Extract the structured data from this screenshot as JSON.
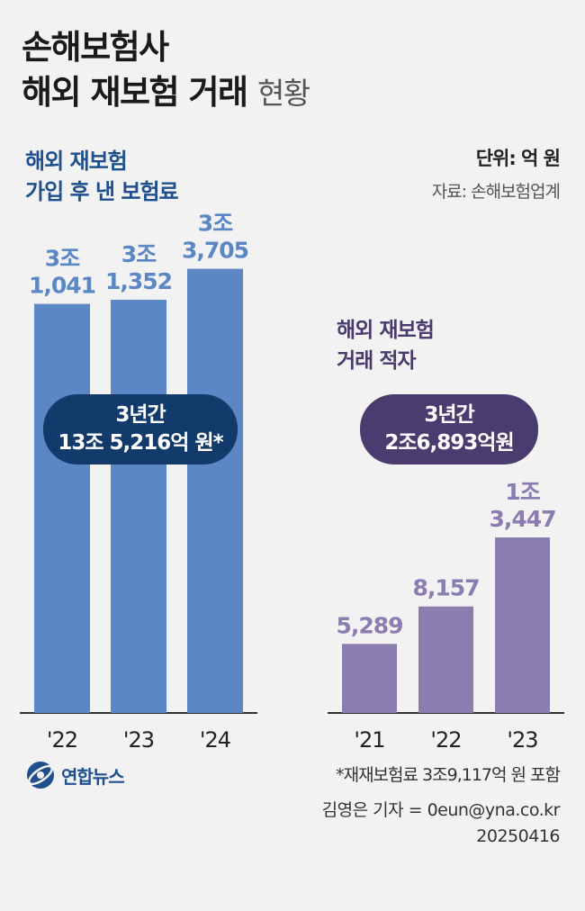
{
  "title": {
    "line1": "손해보험사",
    "line2_bold": "해외 재보험 거래",
    "line2_light": "현황"
  },
  "unit": "단위: 억 원",
  "source": "자료: 손해보험업계",
  "left_panel": {
    "subtitle_line1": "해외 재보험",
    "subtitle_line2": "가입 후 낸 보험료",
    "total_line1": "3년간",
    "total_line2": "13조 5,216억 원*"
  },
  "right_panel": {
    "subtitle_line1": "해외 재보험",
    "subtitle_line2": "거래 적자",
    "total_line1": "3년간",
    "total_line2": "2조6,893억원"
  },
  "footnote": "*재재보험료 3조9,117억 원 포함",
  "credit": {
    "author": "김영은 기자 = 0eun@yna.co.kr",
    "date": "20250416"
  },
  "logo": {
    "name": "연합뉴스"
  },
  "colors": {
    "left_bar": "#5b87c5",
    "left_label": "#5b87c5",
    "right_bar": "#8b7db0",
    "right_label": "#8b7db0",
    "axis": "#333333"
  },
  "chart_data": [
    {
      "type": "bar",
      "title": "해외 재보험 가입 후 낸 보험료",
      "categories": [
        "'22",
        "'23",
        "'24"
      ],
      "values": [
        31041,
        31352,
        33705
      ],
      "labels": [
        [
          "3조",
          "1,041"
        ],
        [
          "3조",
          "1,352"
        ],
        [
          "3조",
          "3,705"
        ]
      ],
      "ylabel": "억 원",
      "ylim": [
        0,
        36000
      ]
    },
    {
      "type": "bar",
      "title": "해외 재보험 거래 적자",
      "categories": [
        "'21",
        "'22",
        "'23"
      ],
      "values": [
        5289,
        8157,
        13447
      ],
      "labels": [
        [
          "5,289"
        ],
        [
          "8,157"
        ],
        [
          "1조",
          "3,447"
        ]
      ],
      "ylabel": "억 원",
      "ylim": [
        0,
        13447
      ]
    }
  ]
}
